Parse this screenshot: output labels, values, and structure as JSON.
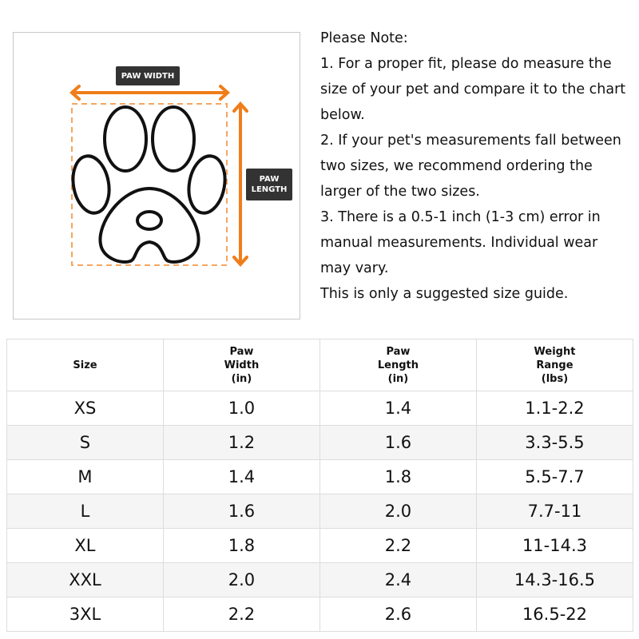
{
  "diagram": {
    "width_label": "PAW WIDTH",
    "length_label_line1": "PAW",
    "length_label_line2": "LENGTH",
    "accent": "#f07d1a"
  },
  "notes": [
    "Please Note:",
    "1. For a proper fit, please do measure the",
    "size of your pet and compare it to the chart",
    "below.",
    "2. If your pet's measurements fall between",
    "two sizes, we recommend ordering the",
    "larger of the two sizes.",
    "3. There is a 0.5-1 inch (1-3 cm) error in",
    "manual measurements. Individual wear",
    "may vary.",
    "This is only a suggested size guide."
  ],
  "table": {
    "headers": [
      [
        "Size"
      ],
      [
        "Paw",
        "Width",
        "(in)"
      ],
      [
        "Paw",
        "Length",
        "(in)"
      ],
      [
        "Weight",
        "Range",
        "(lbs)"
      ]
    ],
    "rows": [
      [
        "XS",
        "1.0",
        "1.4",
        "1.1-2.2"
      ],
      [
        "S",
        "1.2",
        "1.6",
        "3.3-5.5"
      ],
      [
        "M",
        "1.4",
        "1.8",
        "5.5-7.7"
      ],
      [
        "L",
        "1.6",
        "2.0",
        "7.7-11"
      ],
      [
        "XL",
        "1.8",
        "2.2",
        "11-14.3"
      ],
      [
        "XXL",
        "2.0",
        "2.4",
        "14.3-16.5"
      ],
      [
        "3XL",
        "2.2",
        "2.6",
        "16.5-22"
      ]
    ]
  }
}
